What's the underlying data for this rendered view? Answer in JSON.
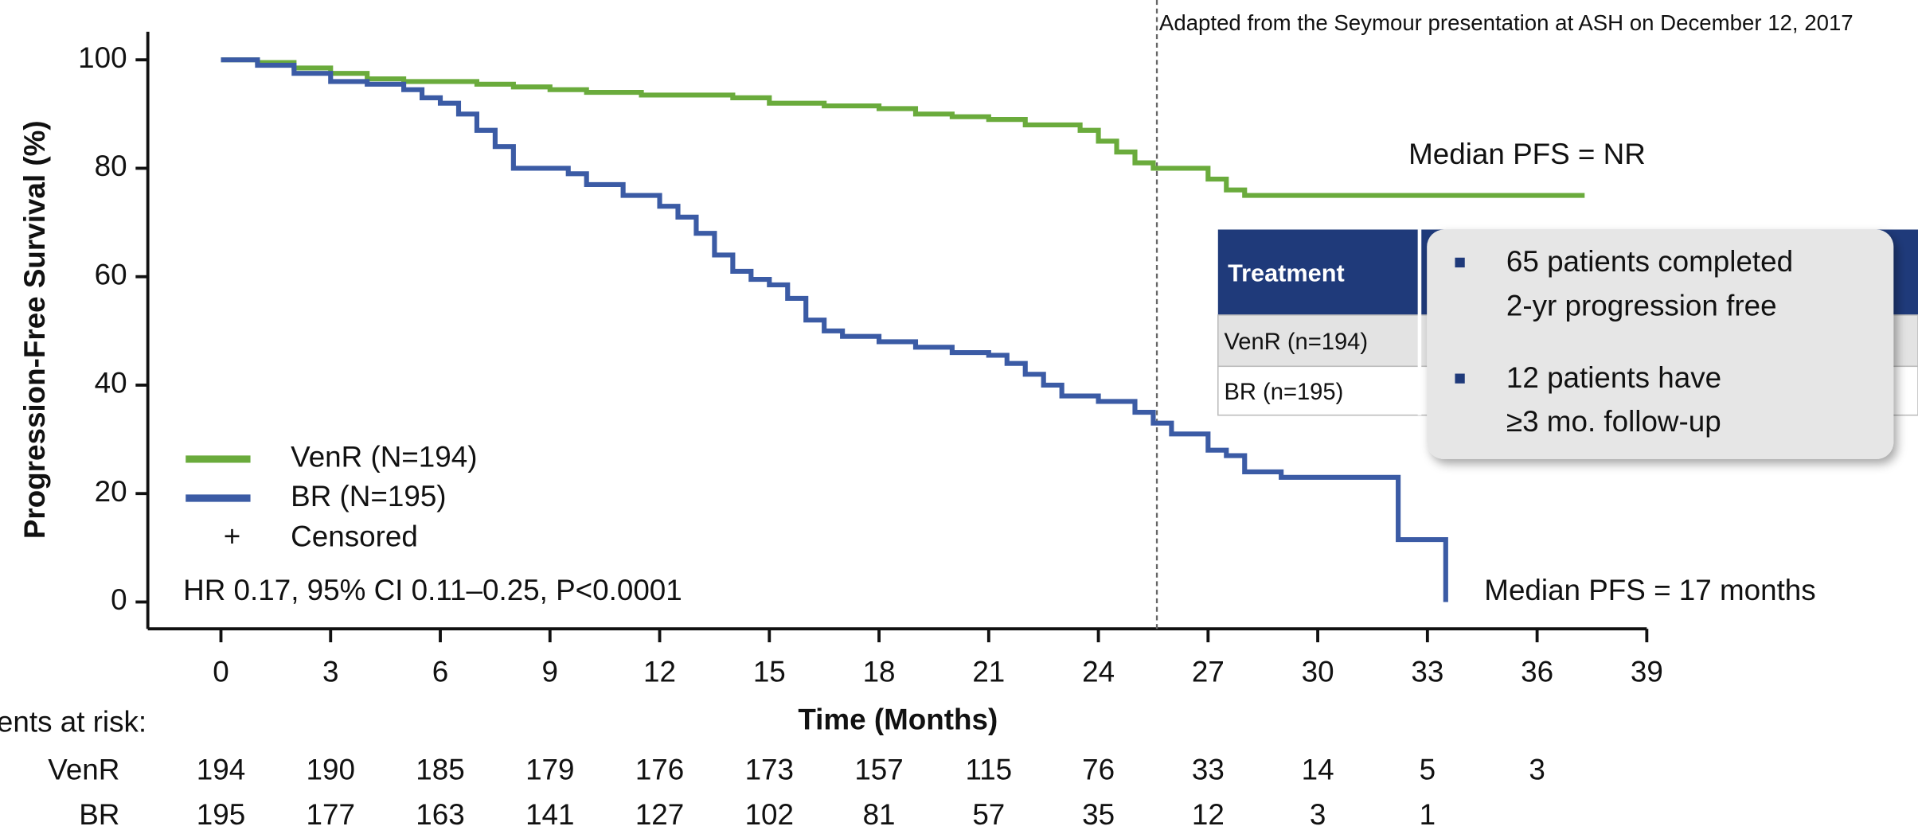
{
  "chart_data": {
    "type": "step",
    "source_note": "Adapted from the Seymour presentation at ASH on December 12, 2017",
    "x_label": "Time (Months)",
    "y_label": "Progression-Free Survival (%)",
    "xlim": [
      -2,
      39
    ],
    "ylim": [
      -5,
      105
    ],
    "xticks": [
      0,
      3,
      6,
      9,
      12,
      15,
      18,
      21,
      24,
      27,
      30,
      33,
      36,
      39
    ],
    "yticks": [
      0,
      20,
      40,
      60,
      80,
      100
    ],
    "reference_line_x": 25.6,
    "series": [
      {
        "name": "VenR (N=194)",
        "color": "#6aab3c",
        "x": [
          0,
          1,
          1,
          2,
          2,
          3,
          3,
          4,
          4,
          5,
          5,
          7,
          7,
          8,
          8,
          9,
          9,
          10,
          10,
          11.5,
          11.5,
          14,
          14,
          15,
          15,
          16.5,
          16.5,
          18,
          18,
          19,
          19,
          20,
          20,
          21,
          21,
          22,
          22,
          23.5,
          23.5,
          24,
          24,
          24.5,
          24.5,
          25,
          25,
          25.5,
          25.5,
          27,
          27,
          27.5,
          27.5,
          28,
          28,
          37.3
        ],
        "values": [
          100,
          100,
          99.5,
          99.5,
          98.5,
          98.5,
          97.5,
          97.5,
          96.5,
          96.5,
          96,
          96,
          95.5,
          95.5,
          95,
          95,
          94.5,
          94.5,
          94,
          94,
          93.5,
          93.5,
          93,
          93,
          92,
          92,
          91.5,
          91.5,
          91,
          91,
          90,
          90,
          89.5,
          89.5,
          89,
          89,
          88,
          88,
          87,
          87,
          85,
          85,
          83,
          83,
          81,
          81,
          80,
          80,
          78,
          78,
          76,
          76,
          75,
          75
        ]
      },
      {
        "name": "BR (N=195)",
        "color": "#3b5ba5",
        "x": [
          0,
          1,
          1,
          2,
          2,
          3,
          3,
          4,
          4,
          5,
          5,
          5.5,
          5.5,
          6,
          6,
          6.5,
          6.5,
          7,
          7,
          7.5,
          7.5,
          8,
          8,
          9.5,
          9.5,
          10,
          10,
          11,
          11,
          12,
          12,
          12.5,
          12.5,
          13,
          13,
          13.5,
          13.5,
          14,
          14,
          14.5,
          14.5,
          15,
          15,
          15.5,
          15.5,
          16,
          16,
          16.5,
          16.5,
          17,
          17,
          18,
          18,
          19,
          19,
          20,
          20,
          21,
          21,
          21.5,
          21.5,
          22,
          22,
          22.5,
          22.5,
          23,
          23,
          24,
          24,
          25,
          25,
          25.5,
          25.5,
          26,
          26,
          27,
          27,
          27.5,
          27.5,
          28,
          28,
          29,
          29,
          32.2,
          32.2,
          33.5,
          33.5
        ],
        "values": [
          100,
          100,
          99,
          99,
          97.5,
          97.5,
          96,
          96,
          95.5,
          95.5,
          94.5,
          94.5,
          93,
          93,
          92,
          92,
          90,
          90,
          87,
          87,
          84,
          84,
          80,
          80,
          79,
          79,
          77,
          77,
          75,
          75,
          73,
          73,
          71,
          71,
          68,
          68,
          64,
          64,
          61,
          61,
          59.5,
          59.5,
          58.5,
          58.5,
          56,
          56,
          52,
          52,
          50,
          50,
          49,
          49,
          48,
          48,
          47,
          47,
          46,
          46,
          45.5,
          45.5,
          44,
          44,
          42,
          42,
          40,
          40,
          38,
          38,
          37,
          37,
          35,
          35,
          33,
          33,
          31,
          31,
          28,
          28,
          27,
          27,
          24,
          24,
          23,
          23,
          11.5,
          11.5,
          0
        ]
      }
    ],
    "censored_marker": "+",
    "censored_label": "Censored",
    "hr_text": "HR 0.17, 95% CI 0.11–0.25, P<0.0001",
    "median_venr": "Median PFS = NR",
    "median_br": "Median PFS = 17 months",
    "risk_table": {
      "title": "Patients at risk:",
      "rows": [
        {
          "name": "VenR",
          "values": [
            194,
            190,
            185,
            179,
            176,
            173,
            157,
            115,
            76,
            33,
            14,
            5,
            3
          ]
        },
        {
          "name": "BR",
          "values": [
            195,
            177,
            163,
            141,
            127,
            102,
            81,
            57,
            35,
            12,
            3,
            1
          ]
        }
      ]
    }
  },
  "inset_table": {
    "header": "Treatment",
    "rows": [
      "VenR (n=194)",
      "BR (n=195)"
    ]
  },
  "callout": {
    "bullets": [
      [
        "65 patients completed",
        "2-yr progression free"
      ],
      [
        "12 patients have",
        "≥3 mo. follow-up"
      ]
    ]
  }
}
